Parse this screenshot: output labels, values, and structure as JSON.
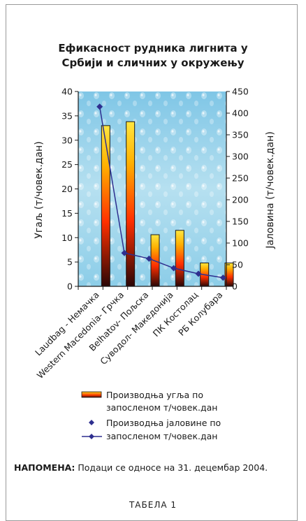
{
  "chart_data": {
    "type": "bar",
    "title": [
      "Ефикасност рудника лигнита у",
      "Србији и сличних у окружењу"
    ],
    "categories": [
      "Laudbag - Немачка",
      "Western Macedonia- Грчка",
      "Belhatov- Пољска",
      "Суводол- Македонија",
      "ПК Костолац",
      "РБ Колубара"
    ],
    "ylabel_left": "Угаљ (т/човек.дан)",
    "ylabel_right": "Јаловина (т/човек.дан)",
    "ylim_left": [
      0,
      40
    ],
    "ylim_right": [
      0,
      450
    ],
    "yticks_left": [
      "0",
      "5",
      "10",
      "15",
      "20",
      "25",
      "30",
      "35",
      "40"
    ],
    "yticks_right": [
      "0",
      "50",
      "100",
      "150",
      "200",
      "250",
      "300",
      "350",
      "400",
      "450"
    ],
    "series": [
      {
        "name": "Производња угља по запосленом т/човек.дан",
        "type": "bar",
        "axis": "left",
        "values": [
          33,
          33.8,
          10.6,
          11.5,
          4.8,
          4.8
        ]
      },
      {
        "name": "Производња јаловине по запосленом т/човек.дан",
        "type": "line",
        "axis": "right",
        "values": [
          415,
          77,
          64,
          42,
          29,
          20
        ]
      }
    ],
    "legend": [
      {
        "line1": "Производња угља по",
        "line2": "запосленом т/човек.дан"
      },
      {
        "line1": "Производња јаловине по",
        "line2": "запосленом т/човек.дан"
      }
    ],
    "colors": {
      "line": "#2e2f8f",
      "marker": "#2e2f8f",
      "bar_top": "#ffd21a",
      "bar_mid": "#ff3a00",
      "bar_bottom": "#3a0a0a",
      "plot_bg": "#a8d8ec"
    }
  },
  "note": {
    "label": "НАПОМЕНА:",
    "text": " Подаци се односе на 31. децембар 2004."
  },
  "table_caption": "ТАБЕЛА 1"
}
